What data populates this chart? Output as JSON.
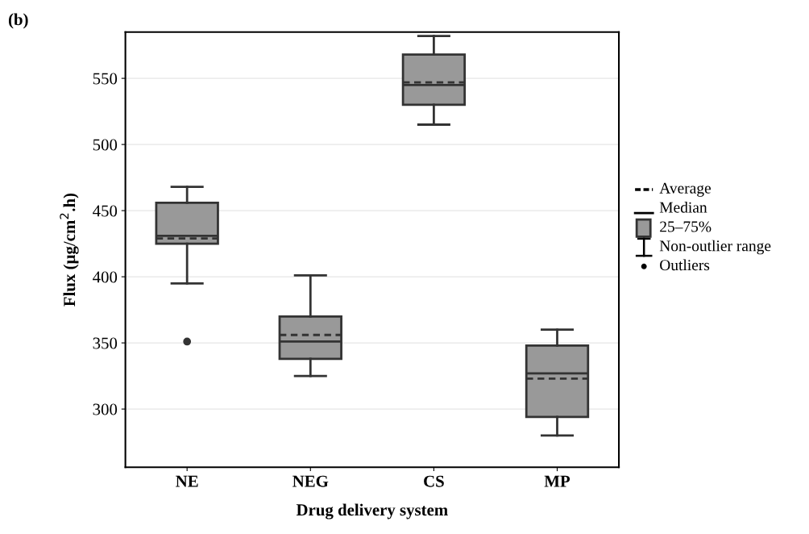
{
  "chart_data": {
    "type": "box",
    "title": "(b)",
    "xlabel": "Drug delivery system",
    "ylabel": "Flux (µg/cm$^{2}$.h)",
    "categories": [
      "NE",
      "NEG",
      "CS",
      "MP"
    ],
    "boxes": [
      {
        "low": 395,
        "q1": 425,
        "median": 431,
        "q3": 456,
        "high": 468,
        "mean": 429,
        "outliers": [
          351
        ]
      },
      {
        "low": 325,
        "q1": 338,
        "median": 351,
        "q3": 370,
        "high": 401,
        "mean": 356
      },
      {
        "low": 515,
        "q1": 530,
        "median": 545,
        "q3": 568,
        "high": 582,
        "mean": 547
      },
      {
        "low": 280,
        "q1": 294,
        "median": 327,
        "q3": 348,
        "high": 360,
        "mean": 323
      }
    ],
    "color": "#999999",
    "ylim": [
      256,
      585
    ],
    "yticks": [
      300,
      350,
      400,
      450,
      500,
      550
    ],
    "grid": "y",
    "annotations": [
      "Average",
      "Median",
      "25–75%",
      "Non-outlier range",
      "Outliers"
    ]
  }
}
